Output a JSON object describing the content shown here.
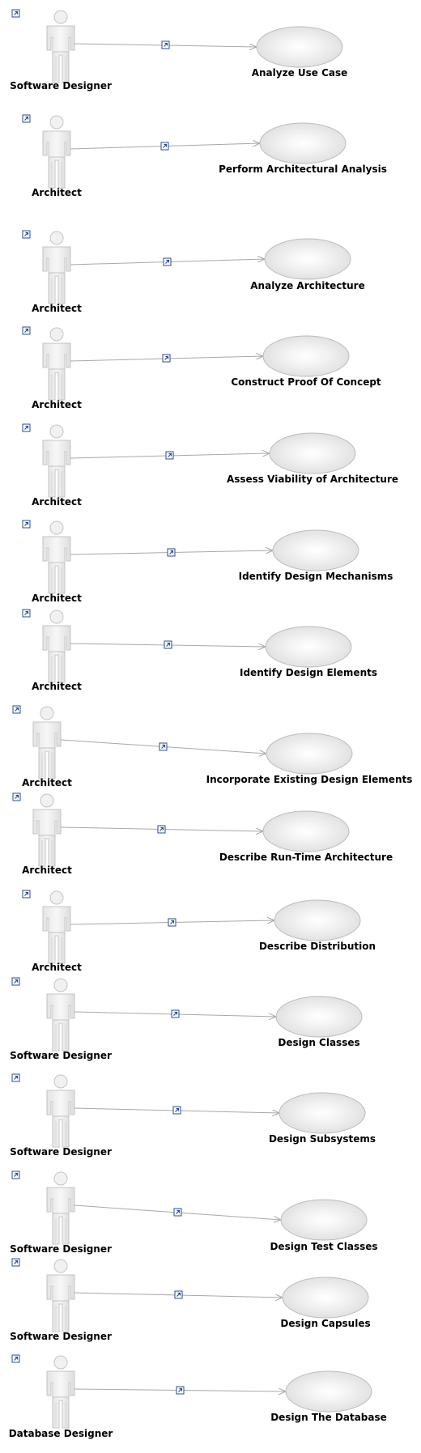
{
  "rows": [
    {
      "actor": "Software Designer",
      "use_case": "Analyze Use Case"
    },
    {
      "actor": "Architect",
      "use_case": "Perform Architectural Analysis"
    },
    {
      "actor": "Architect",
      "use_case": "Analyze Architecture"
    },
    {
      "actor": "Architect",
      "use_case": "Construct Proof Of Concept"
    },
    {
      "actor": "Architect",
      "use_case": "Assess Viability of Architecture"
    },
    {
      "actor": "Architect",
      "use_case": "Identify Design Mechanisms"
    },
    {
      "actor": "Architect",
      "use_case": "Identify Design Elements"
    },
    {
      "actor": "Architect",
      "use_case": "Incorporate Existing Design Elements"
    },
    {
      "actor": "Architect",
      "use_case": "Describe Run-Time Architecture"
    },
    {
      "actor": "Architect",
      "use_case": "Describe Distribution"
    },
    {
      "actor": "Software Designer",
      "use_case": "Design Classes"
    },
    {
      "actor": "Software Designer",
      "use_case": "Design Subsystems"
    },
    {
      "actor": "Software Designer",
      "use_case": "Design Test Classes"
    },
    {
      "actor": "Software Designer",
      "use_case": "Design Capsules"
    },
    {
      "actor": "Database Designer",
      "use_case": "Design The Database"
    }
  ],
  "colors": {
    "actor_fill": "#e6e6e6",
    "actor_stroke": "#c4c4c4",
    "ellipse_outer": "#e8e8e8",
    "ellipse_inner": "#ffffff",
    "ellipse_stroke": "#bcbcbc",
    "line": "#a8a8a8",
    "link_icon": "#2a4d8f"
  },
  "icons": {
    "shortcut": "shortcut-arrow-icon",
    "actor": "actor-icon",
    "use_case": "use-case-ellipse"
  }
}
